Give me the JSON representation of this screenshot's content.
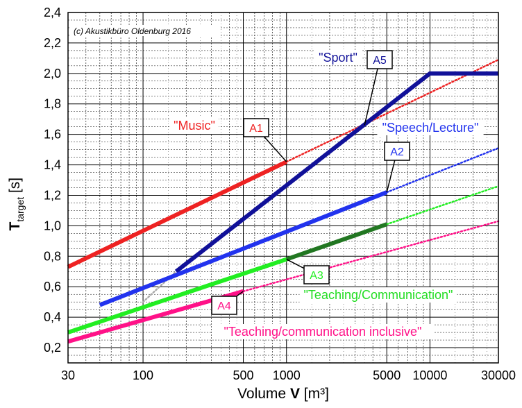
{
  "chart_data": {
    "type": "line",
    "copyright": "(c) Akustikbüro Oldenburg 2016",
    "x_scale": "log",
    "xlim": [
      30,
      30000
    ],
    "ylim": [
      0.1,
      2.4
    ],
    "grid": true,
    "xlabel": {
      "pre": "Volume ",
      "bold": "V",
      "post": " [m³]"
    },
    "ylabel": {
      "main": "T",
      "sub": "target",
      "post": " [s]"
    },
    "x_ticks": [
      30,
      100,
      500,
      1000,
      5000,
      10000,
      30000
    ],
    "x_tick_labels": [
      "30",
      "100",
      "500",
      "1000",
      "5000",
      "10000",
      "30000"
    ],
    "y_ticks": [
      0.2,
      0.4,
      0.6,
      0.8,
      1.0,
      1.2,
      1.4,
      1.6,
      1.8,
      2.0,
      2.2,
      2.4
    ],
    "y_tick_labels": [
      "0,2",
      "0,4",
      "0,6",
      "0,8",
      "1,0",
      "1,2",
      "1,4",
      "1,6",
      "1,8",
      "2,0",
      "2,2",
      "2,4"
    ],
    "series": [
      {
        "id": "A1",
        "label": "\"Music\"",
        "color": "#ee2222",
        "solid": [
          [
            30,
            0.73
          ],
          [
            1000,
            1.42
          ]
        ],
        "dotted": [
          [
            1000,
            1.42
          ],
          [
            30000,
            2.09
          ]
        ]
      },
      {
        "id": "A2",
        "label": "\"Speech/Lecture\"",
        "color": "#2233ee",
        "solid": [
          [
            50,
            0.48
          ],
          [
            5000,
            1.22
          ]
        ],
        "dotted": [
          [
            5000,
            1.22
          ],
          [
            30000,
            1.51
          ]
        ]
      },
      {
        "id": "A3",
        "label": "\"Teaching/Communication\"",
        "color": "#22ee22",
        "solid": [
          [
            30,
            0.3
          ],
          [
            1000,
            0.78
          ]
        ],
        "dotted": [
          [
            5000,
            1.01
          ],
          [
            30000,
            1.26
          ]
        ]
      },
      {
        "id": "A3-mid",
        "label": "",
        "color": "#227722",
        "solid": [
          [
            1000,
            0.78
          ],
          [
            5000,
            1.01
          ]
        ],
        "dotted": []
      },
      {
        "id": "A4",
        "label": "\"Teaching/communication inclusive\"",
        "color": "#ff1188",
        "solid": [
          [
            30,
            0.24
          ],
          [
            500,
            0.57
          ]
        ],
        "dotted": [
          [
            500,
            0.57
          ],
          [
            30000,
            1.03
          ]
        ]
      },
      {
        "id": "A5",
        "label": "\"Sport\"",
        "color": "#111199",
        "solid": [
          [
            170,
            0.7
          ],
          [
            10000,
            2.0
          ],
          [
            30000,
            2.0
          ]
        ],
        "dotted": [
          [
            100,
            0.5
          ],
          [
            170,
            0.7
          ]
        ]
      }
    ],
    "annotations": [
      {
        "id": "A1",
        "text": "A1",
        "color": "#ee2222",
        "box": [
          369,
          184
        ],
        "target": [
          1000,
          1.42
        ],
        "label_at": [
          280,
          184
        ],
        "label_color": "#ee2222",
        "label": "\"Music\""
      },
      {
        "id": "A2",
        "text": "A2",
        "color": "#2233ee",
        "box": [
          572,
          218
        ],
        "target": [
          5000,
          1.22
        ],
        "label_at": [
          620,
          187
        ],
        "label_color": "#2233ee",
        "label": "\"Speech/Lecture\""
      },
      {
        "id": "A3",
        "text": "A3",
        "color": "#22ee22",
        "box": [
          456,
          396
        ],
        "target": [
          1000,
          0.78
        ],
        "label_at": [
          545,
          428
        ],
        "label_color": "#22dd22",
        "label": "\"Teaching/Communication\""
      },
      {
        "id": "A4",
        "text": "A4",
        "color": "#ff1188",
        "box": [
          323,
          440
        ],
        "target": [
          500,
          0.57
        ],
        "label_at": [
          465,
          481
        ],
        "label_color": "#ff1188",
        "label": "\"Teaching/communication inclusive\""
      },
      {
        "id": "A5",
        "text": "A5",
        "color": "#111199",
        "box": [
          547,
          86
        ],
        "target": [
          3500,
          1.66
        ],
        "label_at": [
          487,
          86
        ],
        "label_color": "#111199",
        "label": "\"Sport\""
      }
    ]
  }
}
